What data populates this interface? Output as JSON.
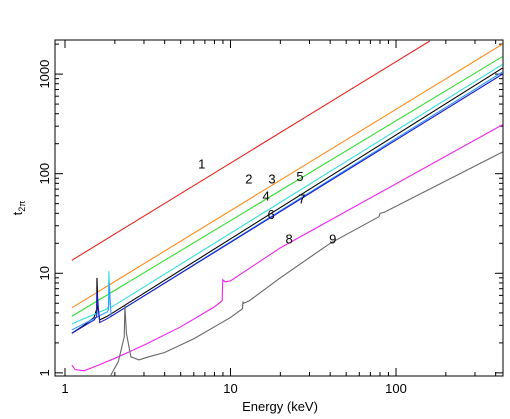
{
  "chart_data": {
    "type": "line",
    "xlabel": "Energy (keV)",
    "ylabel": "t",
    "ylabel_sub": "2π",
    "xlog": true,
    "ylog": true,
    "xlim": [
      0.87,
      443
    ],
    "ylim": [
      0.93,
      2200
    ],
    "xticks": [
      1,
      10,
      100
    ],
    "yticks": [
      1,
      10,
      100,
      1000
    ],
    "xminorticks": [
      2,
      3,
      4,
      5,
      6,
      7,
      8,
      9,
      20,
      30,
      40,
      50,
      60,
      70,
      80,
      90,
      200,
      300,
      400
    ],
    "yminorticks": [
      2,
      3,
      4,
      5,
      6,
      7,
      8,
      9,
      20,
      30,
      40,
      50,
      60,
      70,
      80,
      90,
      200,
      300,
      400,
      500,
      600,
      700,
      800,
      900,
      2000
    ],
    "series": [
      {
        "name": "1",
        "color": "#e8231e",
        "x": [
          1.1,
          160
        ],
        "values": [
          13.5,
          2150
        ]
      },
      {
        "name": "2",
        "color": "#ff8c1a",
        "x": [
          1.1,
          440
        ],
        "values": [
          4.5,
          2000
        ]
      },
      {
        "name": "3",
        "color": "#33dd33",
        "x": [
          1.1,
          440
        ],
        "values": [
          3.7,
          1500
        ]
      },
      {
        "name": "4",
        "color": "#000000",
        "x": [
          1.1,
          1.3,
          1.5,
          1.555,
          1.56,
          1.58,
          1.62,
          1.8,
          440
        ],
        "values": [
          2.5,
          3.0,
          3.6,
          4.4,
          9.0,
          4.5,
          3.4,
          3.7,
          1150
        ]
      },
      {
        "name": "5",
        "color": "#33dddd",
        "x": [
          1.1,
          1.8,
          1.83,
          1.84,
          1.88,
          440
        ],
        "values": [
          3.1,
          4.4,
          4.6,
          10.5,
          4.5,
          1250
        ]
      },
      {
        "name": "6",
        "color": "#3399ff",
        "x": [
          1.1,
          1.8,
          1.83,
          1.85,
          1.9,
          440
        ],
        "values": [
          2.7,
          4.1,
          4.3,
          8,
          3.7,
          1050
        ]
      },
      {
        "name": "7",
        "color": "#1a1acc",
        "x": [
          1.1,
          1.5,
          1.555,
          1.56,
          1.62,
          1.8,
          440
        ],
        "values": [
          2.5,
          3.4,
          3.7,
          6.5,
          3.2,
          3.5,
          1000
        ]
      },
      {
        "name": "8",
        "color": "#ee22ee",
        "x": [
          1.1,
          1.15,
          1.3,
          1.6,
          2,
          3,
          5,
          8,
          8.9,
          8.98,
          9.3,
          10,
          20,
          440
        ],
        "values": [
          1.2,
          1.08,
          1.05,
          1.2,
          1.4,
          1.9,
          2.9,
          4.6,
          5.3,
          8.6,
          8.2,
          8.4,
          18,
          310
        ]
      },
      {
        "name": "9",
        "color": "#666666",
        "x": [
          1.88,
          2.1,
          2.28,
          2.3,
          2.35,
          2.5,
          2.8,
          3.2,
          4,
          6,
          8,
          10,
          11.8,
          11.9,
          12,
          13,
          20,
          40,
          79,
          80,
          85,
          440
        ],
        "values": [
          0.93,
          1.3,
          2.3,
          4.7,
          2.5,
          1.45,
          1.35,
          1.45,
          1.6,
          2.2,
          2.9,
          3.6,
          4.4,
          5.2,
          5.0,
          5.3,
          9,
          20,
          37,
          40,
          41,
          165
        ]
      }
    ]
  }
}
